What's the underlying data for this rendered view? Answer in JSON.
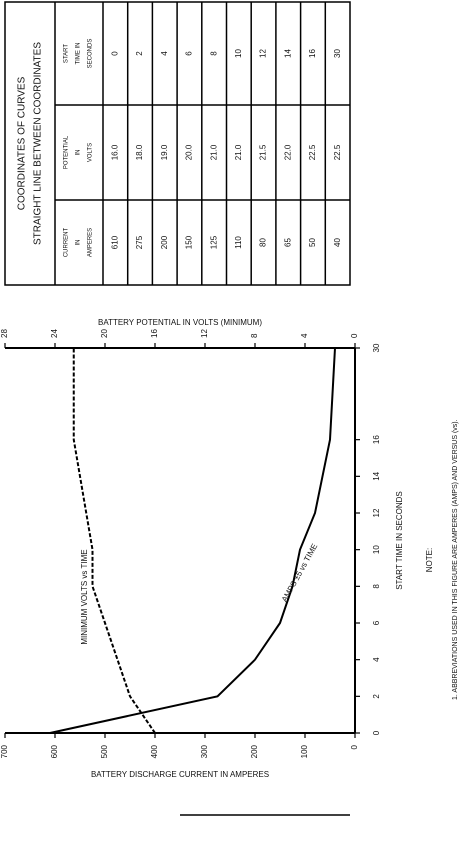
{
  "chart_data": {
    "type": "line",
    "x": [
      0,
      2,
      4,
      6,
      8,
      10,
      12,
      14,
      16,
      30
    ],
    "xlim": [
      0,
      30
    ],
    "xticks": [
      0,
      2,
      4,
      6,
      8,
      10,
      12,
      14,
      16,
      30
    ],
    "xlabel": "START TIME IN SECONDS",
    "ylabel": "BATTERY DISCHARGE CURRENT IN AMPERES",
    "y2label": "BATTERY POTENTIAL IN VOLTS (MINIMUM)",
    "ylim": [
      0,
      700
    ],
    "yticks": [
      0,
      100,
      200,
      300,
      400,
      500,
      600,
      700
    ],
    "y2lim": [
      0,
      28
    ],
    "y2ticks": [
      0,
      4,
      8,
      12,
      16,
      20,
      24,
      28
    ],
    "series": [
      {
        "name": "AMPS ±5 vs TIME",
        "color": "#000000",
        "dash": false,
        "values": [
          610,
          275,
          200,
          150,
          125,
          110,
          80,
          65,
          50,
          40
        ]
      },
      {
        "name": "MINIMUM VOLTS vs TIME",
        "color": "#000000",
        "dash": true,
        "axis": "y2",
        "values": [
          16,
          18,
          19,
          20,
          21,
          21,
          21.5,
          22,
          22.5,
          22.5
        ],
        "value_labels": [
          "16.0",
          "18.0",
          "19.0",
          "20.0",
          "21.0",
          "21.0",
          "21.5",
          "22.0",
          "22.5",
          "22.5"
        ]
      }
    ]
  },
  "table": {
    "title": [
      "COORDINATES OF CURVES",
      "STRAIGHT LINE BETWEEN COORDINATES"
    ],
    "headers": [
      [
        "CURRENT",
        "IN",
        "AMPERES"
      ],
      [
        "POTENTIAL",
        "IN",
        "VOLTS"
      ],
      [
        "START",
        "TIME IN",
        "SECONDS"
      ]
    ]
  },
  "note": {
    "title": "NOTE:",
    "items": [
      "1. ABBREVIATIONS USED IN THIS FIGURE ARE AMPERES (AMPS) AND VERSUS (vs)."
    ]
  }
}
